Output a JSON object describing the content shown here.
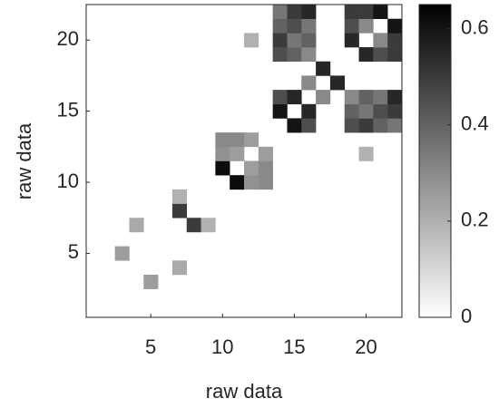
{
  "chart_data": {
    "type": "heatmap",
    "xlabel": "raw data",
    "ylabel": "raw data",
    "xlim": [
      0.5,
      22.5
    ],
    "ylim": [
      0.5,
      22.5
    ],
    "xticks": [
      5,
      10,
      15,
      20
    ],
    "yticks": [
      5,
      10,
      15,
      20
    ],
    "clim": [
      0,
      0.65
    ],
    "cticks": [
      0,
      0.2,
      0.4,
      0.6
    ],
    "colormap": [
      "#ffffff",
      "#000000"
    ],
    "x": [
      3,
      5,
      4,
      7,
      7,
      8,
      7,
      9,
      12,
      20,
      10,
      11,
      10,
      12,
      10,
      13,
      11,
      12,
      11,
      13,
      12,
      13,
      14,
      15,
      14,
      16,
      15,
      16,
      16,
      17,
      17,
      18,
      19,
      20,
      19,
      21,
      19,
      22,
      20,
      21,
      20,
      22,
      21,
      22,
      14,
      19,
      14,
      20,
      14,
      21,
      14,
      22,
      15,
      19,
      15,
      20,
      15,
      21,
      15,
      22,
      16,
      19,
      16,
      20,
      16,
      21,
      16,
      22
    ],
    "y": [
      5,
      3,
      7,
      4,
      8,
      7,
      9,
      7,
      20,
      12,
      11,
      10,
      12,
      10,
      13,
      10,
      12,
      11,
      13,
      11,
      13,
      12,
      15,
      14,
      16,
      14,
      16,
      15,
      17,
      16,
      18,
      17,
      20,
      19,
      21,
      19,
      22,
      19,
      21,
      20,
      22,
      20,
      22,
      21,
      19,
      14,
      20,
      14,
      21,
      14,
      22,
      14,
      19,
      15,
      20,
      15,
      21,
      15,
      22,
      15,
      19,
      16,
      20,
      16,
      21,
      16,
      22,
      16
    ],
    "values": [
      0.25,
      0.25,
      0.22,
      0.22,
      0.5,
      0.5,
      0.2,
      0.2,
      0.2,
      0.2,
      0.62,
      0.62,
      0.28,
      0.28,
      0.3,
      0.3,
      0.25,
      0.25,
      0.3,
      0.3,
      0.25,
      0.25,
      0.6,
      0.6,
      0.45,
      0.45,
      0.55,
      0.55,
      0.3,
      0.3,
      0.55,
      0.55,
      0.55,
      0.55,
      0.45,
      0.45,
      0.5,
      0.5,
      0.3,
      0.3,
      0.5,
      0.5,
      0.6,
      0.6,
      0.45,
      0.45,
      0.5,
      0.5,
      0.4,
      0.4,
      0.35,
      0.35,
      0.4,
      0.4,
      0.35,
      0.35,
      0.45,
      0.45,
      0.5,
      0.5,
      0.3,
      0.3,
      0.4,
      0.4,
      0.35,
      0.35,
      0.55,
      0.55
    ]
  }
}
